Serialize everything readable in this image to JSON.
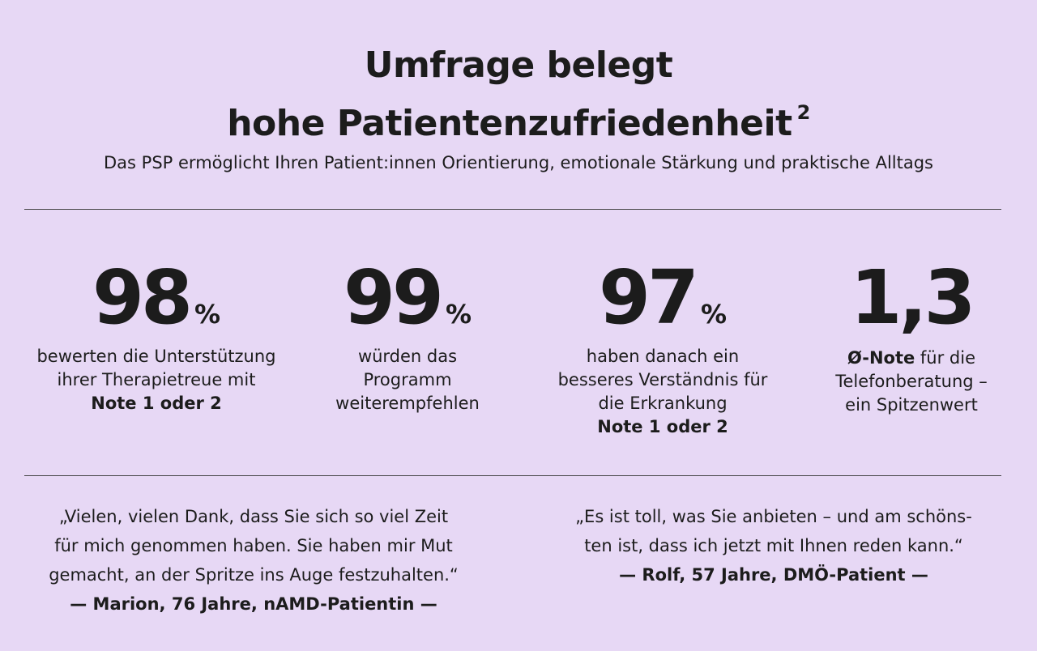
{
  "header": {
    "title_line1": "Umfrage belegt",
    "title_line2": "hohe Patientenzufriedenheit",
    "title_footnote": "2",
    "subtitle": "Das PSP ermöglicht Ihren Patient:innen Orientierung, emotionale Stärkung und praktische Alltags"
  },
  "stats": [
    {
      "value": "98",
      "unit": "%",
      "desc_line1": "bewerten die Unterstützung",
      "desc_line2": "ihrer Therapietreue mit",
      "desc_bold": "Note 1 oder 2"
    },
    {
      "value": "99",
      "unit": "%",
      "desc_line1": "würden das",
      "desc_line2": "Programm",
      "desc_line3": "weiterempfehlen"
    },
    {
      "value": "97",
      "unit": "%",
      "desc_line1": "haben danach ein",
      "desc_line2": "besseres Verständnis für",
      "desc_line3": "die Erkrankung",
      "desc_bold": "Note 1 oder 2"
    },
    {
      "value": "1,3",
      "desc_bold": "Ø-Note",
      "desc_line1_rest": " für die",
      "desc_line2": "Telefonberatung –",
      "desc_line3": "ein Spitzenwert"
    }
  ],
  "quotes": [
    {
      "line1": "„Vielen, vielen Dank, dass Sie sich so viel Zeit",
      "line2": "für mich genommen haben. Sie haben mir Mut",
      "line3": "gemacht, an der Spritze ins Auge festzuhalten.“",
      "author": "— Marion, 76 Jahre, nAMD-Patientin —"
    },
    {
      "line1": "„Es ist toll, was Sie anbieten – und am schöns-",
      "line2": "ten ist, dass ich jetzt mit Ihnen reden kann.“",
      "author": "— Rolf, 57 Jahre, DMÖ-Patient —"
    }
  ]
}
